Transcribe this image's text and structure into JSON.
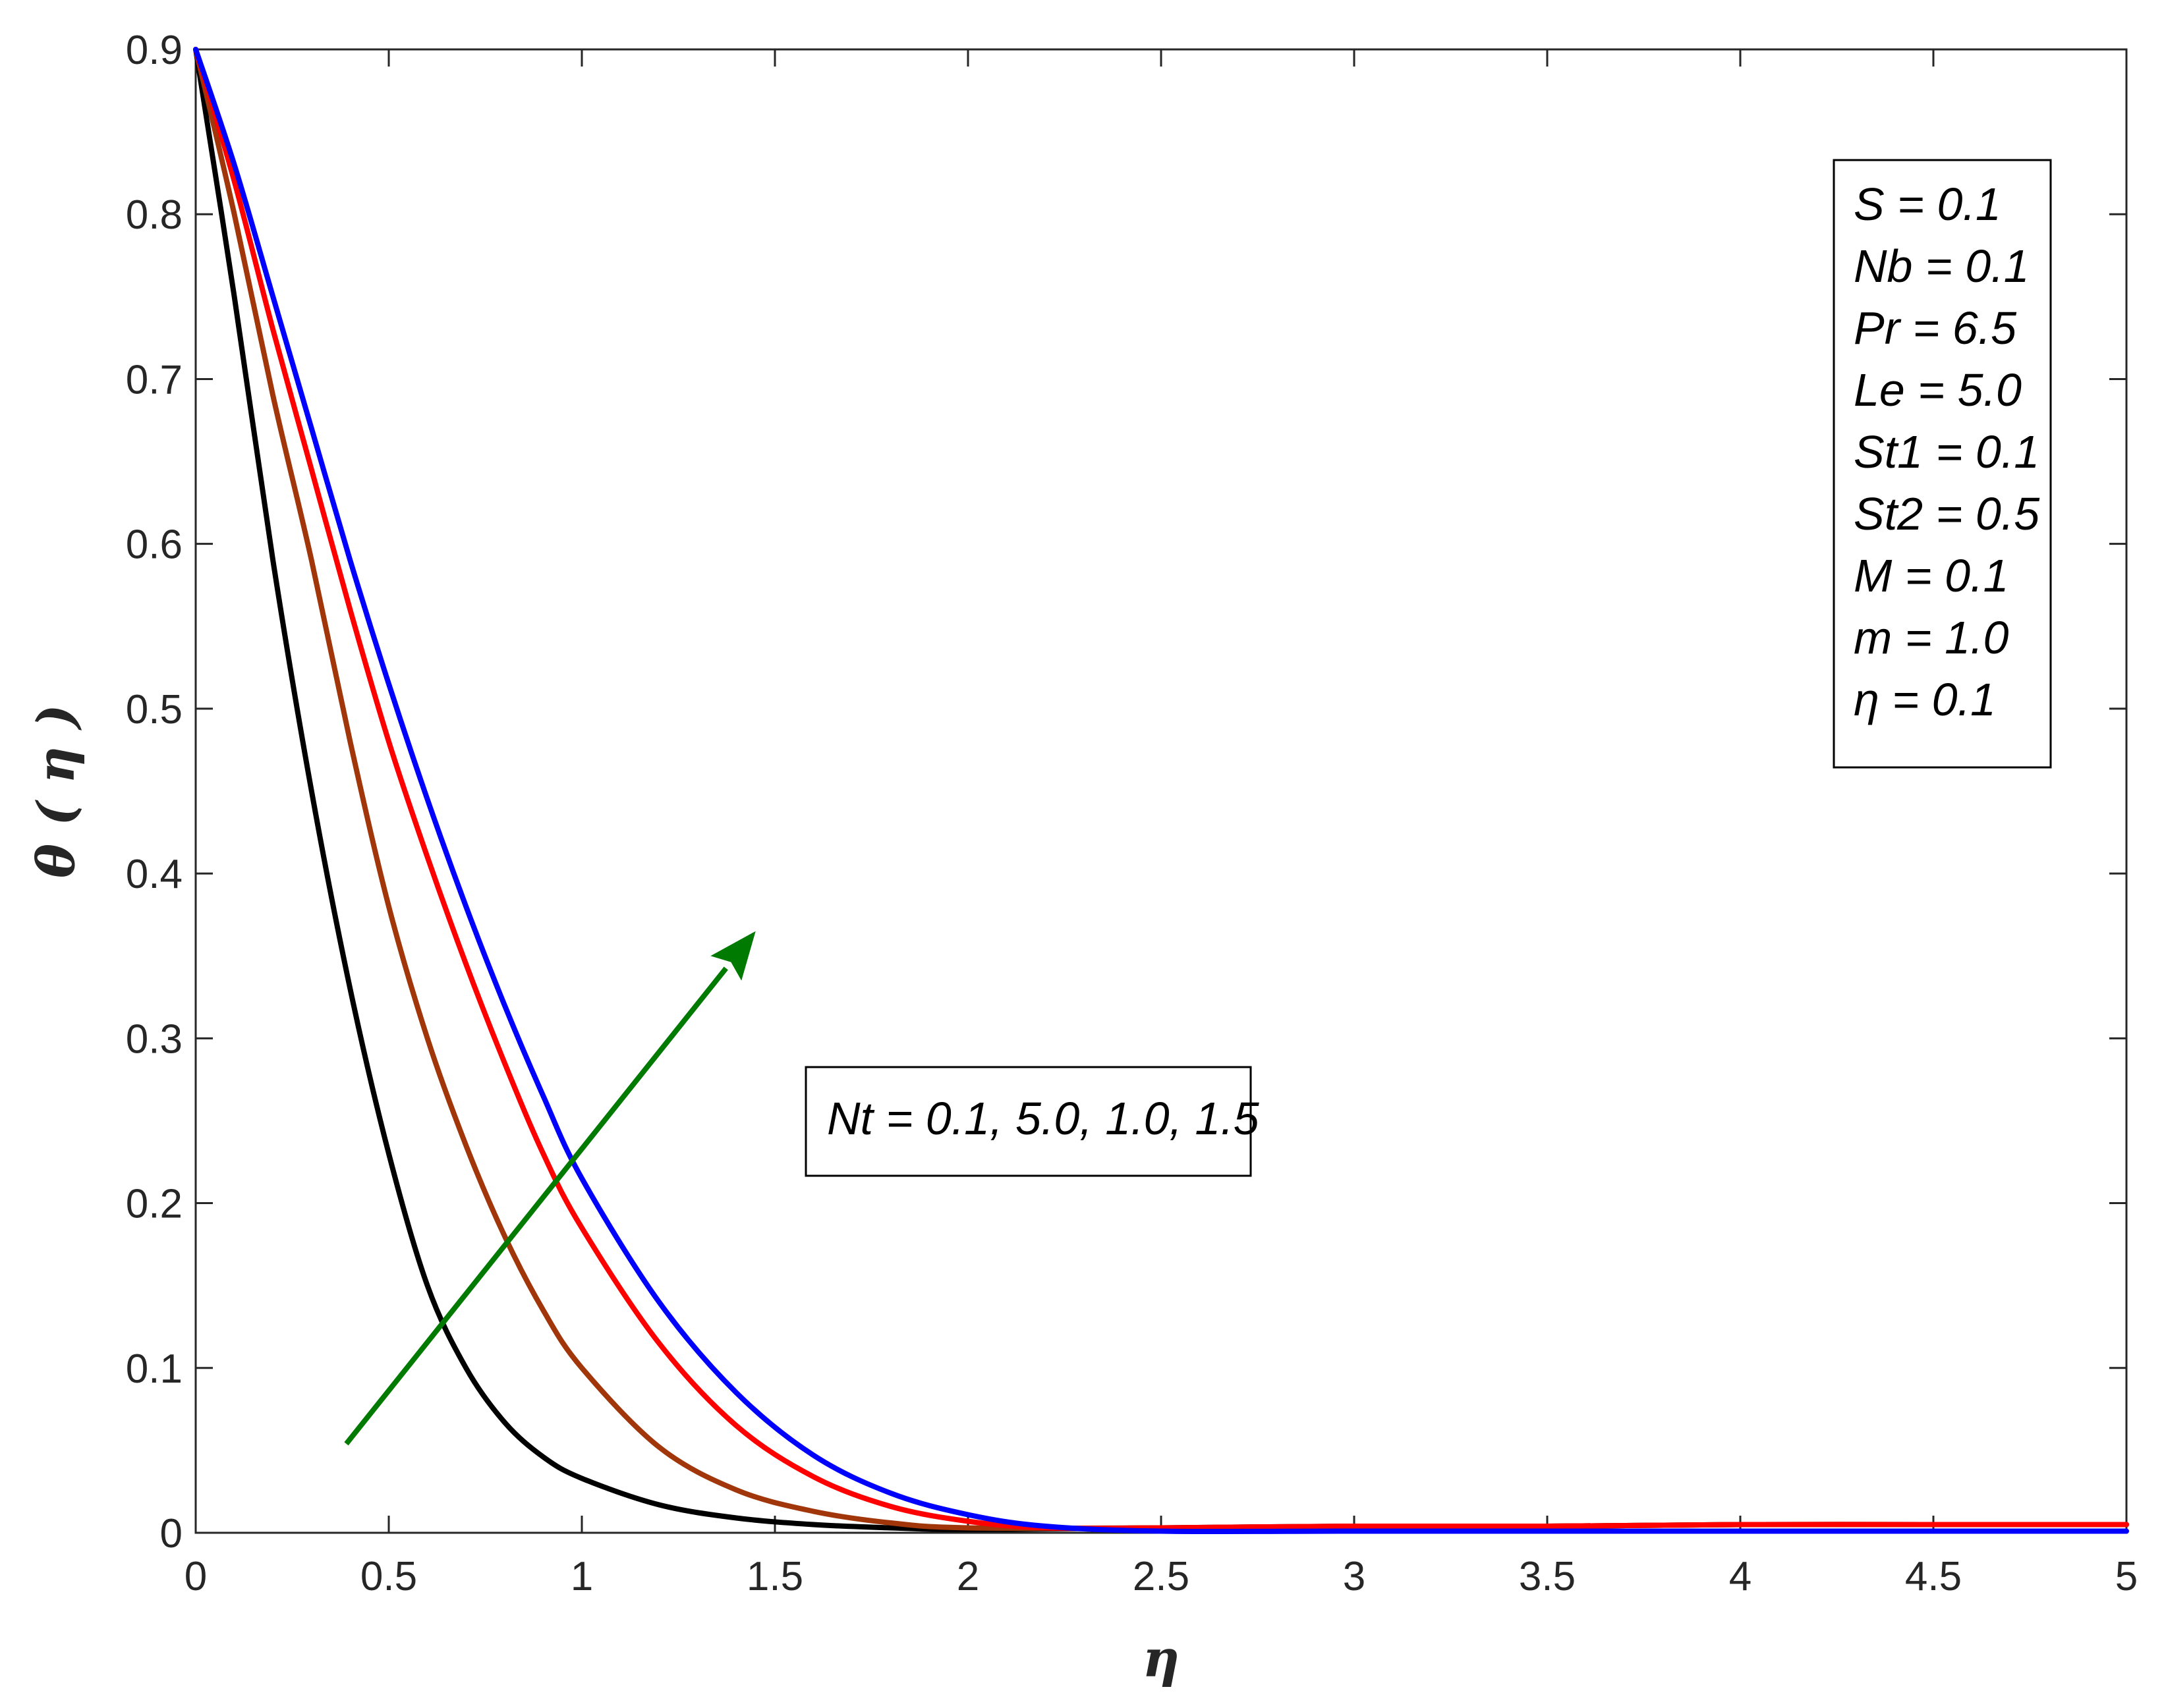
{
  "chart_data": {
    "type": "line",
    "xlabel": "η",
    "ylabel": "θ ( η )",
    "xlim": [
      0,
      5
    ],
    "ylim": [
      0,
      0.9
    ],
    "xticks": [
      "0",
      "0.5",
      "1",
      "1.5",
      "2",
      "2.5",
      "3",
      "3.5",
      "4",
      "4.5",
      "5"
    ],
    "yticks": [
      "0",
      "0.1",
      "0.2",
      "0.3",
      "0.4",
      "0.5",
      "0.6",
      "0.7",
      "0.8",
      "0.9"
    ],
    "grid": false,
    "series": [
      {
        "color": "#000000",
        "x": [
          0,
          0.1,
          0.2,
          0.3,
          0.4,
          0.5,
          0.6,
          0.7,
          0.8,
          0.9,
          1.0,
          1.2,
          1.4,
          1.6,
          1.8,
          2.0,
          2.5,
          3.0,
          3.5,
          4.0,
          4.5,
          5.0
        ],
        "y": [
          0.9,
          0.75,
          0.59,
          0.45,
          0.33,
          0.23,
          0.15,
          0.1,
          0.067,
          0.046,
          0.033,
          0.017,
          0.009,
          0.005,
          0.003,
          0.002,
          0.003,
          0.004,
          0.004,
          0.005,
          0.005,
          0.005
        ]
      },
      {
        "color": "#a0360a",
        "x": [
          0,
          0.1,
          0.2,
          0.3,
          0.4,
          0.5,
          0.6,
          0.7,
          0.8,
          0.9,
          1.0,
          1.2,
          1.4,
          1.6,
          1.8,
          2.0,
          2.5,
          3.0,
          3.5,
          4.0,
          4.5,
          5.0
        ],
        "y": [
          0.9,
          0.8,
          0.69,
          0.59,
          0.48,
          0.38,
          0.3,
          0.235,
          0.18,
          0.135,
          0.1,
          0.052,
          0.026,
          0.013,
          0.006,
          0.003,
          0.003,
          0.004,
          0.004,
          0.005,
          0.005,
          0.005
        ]
      },
      {
        "color": "#ff0000",
        "x": [
          0,
          0.1,
          0.2,
          0.3,
          0.4,
          0.5,
          0.6,
          0.7,
          0.8,
          0.9,
          1.0,
          1.2,
          1.4,
          1.6,
          1.8,
          2.0,
          2.2,
          2.5,
          3.0,
          3.5,
          4.0,
          4.5,
          5.0
        ],
        "y": [
          0.9,
          0.82,
          0.73,
          0.645,
          0.56,
          0.48,
          0.41,
          0.345,
          0.285,
          0.23,
          0.185,
          0.115,
          0.065,
          0.034,
          0.016,
          0.007,
          0.003,
          0.003,
          0.004,
          0.004,
          0.005,
          0.005,
          0.005
        ]
      },
      {
        "color": "#0000ff",
        "x": [
          0,
          0.1,
          0.2,
          0.3,
          0.4,
          0.5,
          0.6,
          0.7,
          0.8,
          0.9,
          1.0,
          1.2,
          1.4,
          1.6,
          1.8,
          2.0,
          2.2,
          2.5,
          3.0,
          3.5,
          4.0,
          4.5,
          5.0
        ],
        "y": [
          0.9,
          0.83,
          0.75,
          0.67,
          0.59,
          0.515,
          0.445,
          0.38,
          0.32,
          0.265,
          0.215,
          0.14,
          0.085,
          0.047,
          0.024,
          0.011,
          0.004,
          0.001,
          0.001,
          0.001,
          0.001,
          0.001,
          0.001
        ]
      }
    ],
    "arrow": {
      "color": "#007a00",
      "from": [
        0.39,
        0.054
      ],
      "to": [
        1.45,
        0.365
      ]
    },
    "annotations": {
      "params": [
        "S = 0.1",
        "Nb  = 0.1",
        "Pr = 6.5",
        "Le = 5.0",
        "St1 = 0.1",
        "St2 = 0.5",
        "M  = 0.1",
        "m = 1.0",
        "η = 0.1"
      ],
      "nt_label": "Nt  = 0.1, 5.0, 1.0, 1.5"
    }
  }
}
